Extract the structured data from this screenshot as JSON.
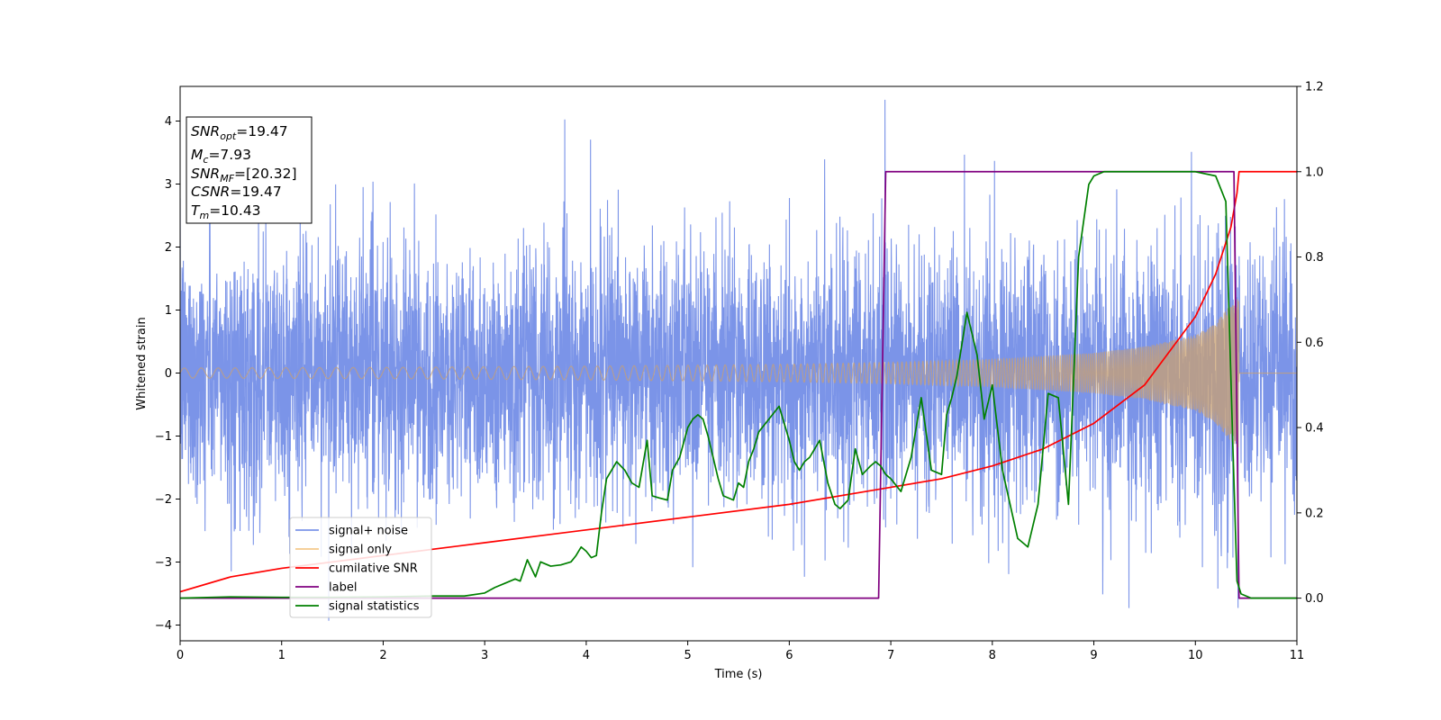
{
  "chart_data": {
    "type": "line",
    "title": "",
    "xlabel": "Time (s)",
    "ylabel": "Whitened strain",
    "xlim": [
      0,
      11
    ],
    "ylim_left": [
      -4.25,
      4.55
    ],
    "ylim_right": [
      -0.1,
      1.2
    ],
    "xticks": [
      "0",
      "1",
      "2",
      "3",
      "4",
      "5",
      "6",
      "7",
      "8",
      "9",
      "10",
      "11"
    ],
    "yticks_left": [
      "−4",
      "−3",
      "−2",
      "−1",
      "0",
      "1",
      "2",
      "3",
      "4"
    ],
    "yticks_right": [
      "0.0",
      "0.2",
      "0.4",
      "0.6",
      "0.8",
      "1.0",
      "1.2"
    ],
    "grid": false,
    "legend_position": "lower-left",
    "annotation": {
      "snr_opt": {
        "base": "SNR",
        "sub": "opt",
        "value": "=19.47"
      },
      "mc": {
        "base": "M",
        "sub": "c",
        "value": "=7.93"
      },
      "snr_mf": {
        "base": "SNR",
        "sub": "MF",
        "value": "=[20.32]"
      },
      "csnr": {
        "base": "CSNR",
        "value": "=19.47"
      },
      "tm": {
        "base": "T",
        "sub": "m",
        "value": "=10.43"
      }
    },
    "series": [
      {
        "name": "signal+ noise",
        "color": "#7b94e8",
        "axis": "left",
        "description_values": {
          "std": 1.0,
          "max_peak": 4.17,
          "min_peak": -3.85
        }
      },
      {
        "name": "signal only",
        "color": "#f5c98c",
        "axis": "left",
        "envelope": {
          "t": [
            0,
            2,
            4,
            6,
            7,
            8,
            9,
            9.5,
            10,
            10.2,
            10.3,
            10.4,
            10.43
          ],
          "amp": [
            0.08,
            0.09,
            0.11,
            0.14,
            0.17,
            0.22,
            0.32,
            0.42,
            0.6,
            0.8,
            1.0,
            1.15,
            1.2
          ]
        },
        "merger_time": 10.43
      },
      {
        "name": "cumilative SNR",
        "color": "#ff0000",
        "axis": "right",
        "x": [
          0,
          0.5,
          1,
          2,
          3,
          4,
          5,
          6,
          7,
          7.5,
          8,
          8.5,
          9,
          9.5,
          10,
          10.2,
          10.35,
          10.41,
          10.43,
          11
        ],
        "y": [
          0.015,
          0.05,
          0.07,
          0.1,
          0.13,
          0.16,
          0.19,
          0.22,
          0.26,
          0.28,
          0.31,
          0.35,
          0.41,
          0.5,
          0.66,
          0.76,
          0.87,
          0.95,
          1.0,
          1.0
        ]
      },
      {
        "name": "label",
        "color": "#800080",
        "axis": "right",
        "x": [
          0,
          6.88,
          6.95,
          10.38,
          10.43,
          11
        ],
        "y": [
          0,
          0,
          1,
          1,
          0,
          0
        ]
      },
      {
        "name": "signal statistics",
        "color": "#008000",
        "axis": "right",
        "x": [
          0,
          0.5,
          1,
          1.5,
          2,
          2.5,
          2.8,
          3.0,
          3.1,
          3.2,
          3.3,
          3.35,
          3.42,
          3.5,
          3.55,
          3.65,
          3.75,
          3.85,
          3.9,
          3.95,
          4.0,
          4.05,
          4.1,
          4.15,
          4.2,
          4.3,
          4.38,
          4.45,
          4.52,
          4.6,
          4.65,
          4.72,
          4.8,
          4.85,
          4.92,
          5.0,
          5.05,
          5.1,
          5.15,
          5.2,
          5.3,
          5.35,
          5.45,
          5.5,
          5.55,
          5.6,
          5.65,
          5.7,
          5.8,
          5.9,
          6.0,
          6.05,
          6.1,
          6.15,
          6.2,
          6.3,
          6.38,
          6.45,
          6.5,
          6.58,
          6.65,
          6.72,
          6.8,
          6.85,
          6.9,
          6.95,
          7.0,
          7.1,
          7.2,
          7.3,
          7.4,
          7.5,
          7.55,
          7.6,
          7.65,
          7.75,
          7.85,
          7.92,
          8.0,
          8.1,
          8.25,
          8.35,
          8.45,
          8.55,
          8.65,
          8.75,
          8.85,
          8.95,
          9.0,
          9.1,
          9.2,
          9.4,
          9.6,
          9.8,
          10.0,
          10.2,
          10.3,
          10.37,
          10.41,
          10.45,
          10.55,
          11
        ],
        "y": [
          0.0,
          0.003,
          0.002,
          0.002,
          0.003,
          0.005,
          0.005,
          0.012,
          0.025,
          0.035,
          0.045,
          0.04,
          0.09,
          0.05,
          0.085,
          0.075,
          0.078,
          0.085,
          0.1,
          0.12,
          0.11,
          0.095,
          0.1,
          0.2,
          0.28,
          0.32,
          0.3,
          0.27,
          0.26,
          0.37,
          0.24,
          0.235,
          0.23,
          0.3,
          0.33,
          0.4,
          0.42,
          0.43,
          0.42,
          0.38,
          0.28,
          0.24,
          0.23,
          0.27,
          0.26,
          0.32,
          0.35,
          0.39,
          0.42,
          0.45,
          0.37,
          0.32,
          0.3,
          0.32,
          0.33,
          0.37,
          0.27,
          0.22,
          0.21,
          0.23,
          0.35,
          0.29,
          0.31,
          0.32,
          0.31,
          0.29,
          0.28,
          0.25,
          0.33,
          0.47,
          0.3,
          0.29,
          0.43,
          0.47,
          0.52,
          0.67,
          0.57,
          0.42,
          0.5,
          0.3,
          0.14,
          0.12,
          0.22,
          0.48,
          0.47,
          0.22,
          0.8,
          0.97,
          0.99,
          1.0,
          1.0,
          1.0,
          1.0,
          1.0,
          1.0,
          0.99,
          0.93,
          0.35,
          0.04,
          0.01,
          0.0,
          0.0
        ]
      }
    ]
  }
}
